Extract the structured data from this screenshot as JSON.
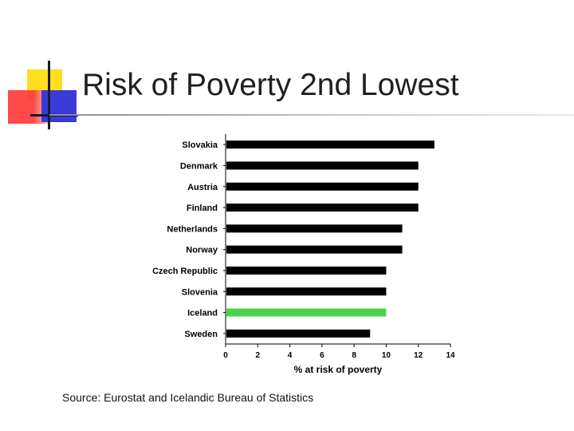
{
  "slide": {
    "title": "Risk of Poverty 2nd Lowest",
    "source": "Source: Eurostat and Icelandic Bureau of Statistics"
  },
  "colors": {
    "bar": "#000000",
    "highlight": "#4cd14c",
    "axis": "#000000"
  },
  "chart_data": {
    "type": "bar",
    "orientation": "horizontal",
    "title": "",
    "xlabel": "% at risk of poverty",
    "ylabel": "",
    "xlim": [
      0,
      14
    ],
    "xticks": [
      0,
      2,
      4,
      6,
      8,
      10,
      12,
      14
    ],
    "grid": false,
    "categories": [
      "Slovakia",
      "Denmark",
      "Austria",
      "Finland",
      "Netherlands",
      "Norway",
      "Czech Republic",
      "Slovenia",
      "Iceland",
      "Sweden"
    ],
    "values": [
      13,
      12,
      12,
      12,
      11,
      11,
      10,
      10,
      10,
      9
    ],
    "highlight": "Iceland"
  }
}
